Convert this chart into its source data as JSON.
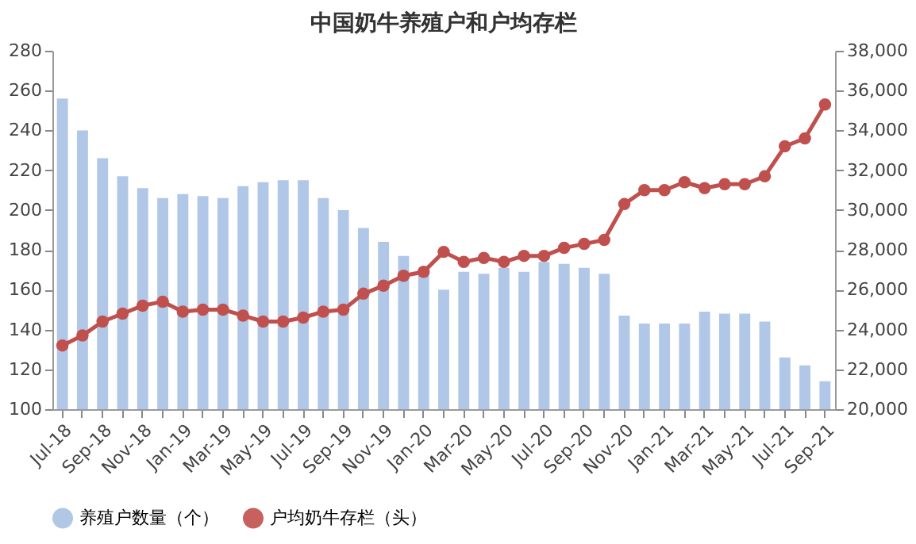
{
  "chart_data": {
    "type": "bar",
    "title": "中国奶牛养殖户和户均存栏",
    "categories": [
      "Jul-18",
      null,
      "Sep-18",
      null,
      "Nov-18",
      null,
      "Jan-19",
      null,
      "Mar-19",
      null,
      "May-19",
      null,
      "Jul-19",
      null,
      "Sep-19",
      null,
      "Nov-19",
      null,
      "Jan-20",
      null,
      "Mar-20",
      null,
      "May-20",
      null,
      "Jul-20",
      null,
      "Sep-20",
      null,
      "Nov-20",
      null,
      "Jan-21",
      null,
      "Mar-21",
      null,
      "May-21",
      null,
      "Jul-21",
      null,
      "Sep-21"
    ],
    "series": [
      {
        "name": "养殖户数量（个）",
        "color": "#a9c1e4",
        "values": [
          256,
          240,
          226,
          217,
          211,
          206,
          208,
          207,
          206,
          212,
          214,
          215,
          215,
          206,
          200,
          191,
          184,
          177,
          168,
          160,
          169,
          168,
          171,
          169,
          174,
          173,
          171,
          168,
          147,
          143,
          143,
          143,
          149,
          148,
          148,
          144,
          126,
          122,
          114
        ]
      },
      {
        "name": "户均奶牛存栏（头）",
        "type": "line",
        "axis": "y2",
        "color": "#c0504d",
        "marker": "circle",
        "values": [
          23200,
          23700,
          24400,
          24800,
          25200,
          25400,
          24900,
          25000,
          25000,
          24700,
          24400,
          24400,
          24600,
          24900,
          25000,
          25800,
          26200,
          26700,
          26900,
          27900,
          27400,
          27600,
          27400,
          27700,
          27700,
          28100,
          28300,
          28500,
          30300,
          31000,
          31000,
          31400,
          31100,
          31300,
          31300,
          31700,
          33200,
          33600,
          35300
        ]
      }
    ],
    "ylim": [
      100,
      280
    ],
    "yticks": [
      100,
      120,
      140,
      160,
      180,
      200,
      220,
      240,
      260,
      280
    ],
    "y2lim": [
      20000,
      38000
    ],
    "y2ticks": [
      {
        "value": 20000,
        "label": "20,000"
      },
      {
        "value": 22000,
        "label": "22,000"
      },
      {
        "value": 24000,
        "label": "24,000"
      },
      {
        "value": 26000,
        "label": "26,000"
      },
      {
        "value": 28000,
        "label": "28,000"
      },
      {
        "value": 30000,
        "label": "30,000"
      },
      {
        "value": 32000,
        "label": "32,000"
      },
      {
        "value": 34000,
        "label": "34,000"
      },
      {
        "value": 36000,
        "label": "36,000"
      },
      {
        "value": 38000,
        "label": "38,000"
      }
    ],
    "legend": "bottom"
  }
}
